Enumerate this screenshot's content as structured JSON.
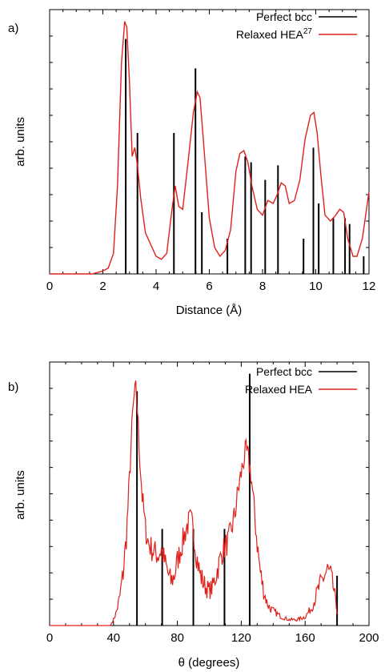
{
  "chart_data": [
    {
      "panel": "a)",
      "type": "line",
      "xlabel": "Distance (Å)",
      "ylabel": "arb. units",
      "xlim": [
        0,
        12
      ],
      "ylim": [
        0,
        1
      ],
      "xticks": [
        "0",
        "2",
        "4",
        "6",
        "8",
        "10",
        "12"
      ],
      "legend_position": "top-right",
      "series": [
        {
          "name": "Perfect bcc",
          "label_base": "Perfect bcc",
          "label_sup": "",
          "style": "impulses",
          "color": "#000000",
          "x": [
            2.86,
            3.3,
            4.67,
            5.48,
            5.72,
            6.68,
            7.35,
            7.57,
            8.1,
            8.58,
            9.54,
            9.91,
            10.11,
            10.66,
            11.1,
            11.27,
            11.8
          ],
          "y": [
            0.8,
            0.48,
            0.48,
            0.7,
            0.21,
            0.12,
            0.4,
            0.38,
            0.32,
            0.37,
            0.12,
            0.43,
            0.24,
            0.19,
            0.19,
            0.17,
            0.06
          ]
        },
        {
          "name": "Relaxed HEA27",
          "label_base": "Relaxed HEA",
          "label_sup": "27",
          "style": "line",
          "color": "#e0201b",
          "x": [
            0,
            1.6,
            2.0,
            2.2,
            2.4,
            2.55,
            2.7,
            2.82,
            2.9,
            3.0,
            3.1,
            3.2,
            3.3,
            3.42,
            3.6,
            3.8,
            4.0,
            4.2,
            4.4,
            4.6,
            4.72,
            4.85,
            5.0,
            5.2,
            5.4,
            5.55,
            5.65,
            5.8,
            6.0,
            6.2,
            6.4,
            6.6,
            6.8,
            7.0,
            7.15,
            7.3,
            7.45,
            7.6,
            7.8,
            8.0,
            8.2,
            8.4,
            8.55,
            8.7,
            8.85,
            9.0,
            9.2,
            9.4,
            9.6,
            9.8,
            9.93,
            10.05,
            10.2,
            10.35,
            10.55,
            10.75,
            10.9,
            11.05,
            11.2,
            11.4,
            11.55,
            11.75,
            12.0
          ],
          "y": [
            0.0,
            0.0,
            0.01,
            0.02,
            0.07,
            0.3,
            0.72,
            0.86,
            0.84,
            0.65,
            0.4,
            0.43,
            0.37,
            0.26,
            0.14,
            0.1,
            0.06,
            0.05,
            0.07,
            0.22,
            0.3,
            0.23,
            0.22,
            0.38,
            0.55,
            0.62,
            0.6,
            0.43,
            0.19,
            0.09,
            0.06,
            0.08,
            0.15,
            0.35,
            0.41,
            0.42,
            0.38,
            0.3,
            0.22,
            0.2,
            0.25,
            0.24,
            0.27,
            0.31,
            0.3,
            0.24,
            0.25,
            0.32,
            0.46,
            0.54,
            0.55,
            0.48,
            0.33,
            0.2,
            0.18,
            0.2,
            0.22,
            0.21,
            0.12,
            0.06,
            0.06,
            0.12,
            0.28
          ]
        }
      ]
    },
    {
      "panel": "b)",
      "type": "line",
      "xlabel": "θ (degrees)",
      "ylabel": "arb. units",
      "xlim": [
        0,
        200
      ],
      "ylim": [
        0,
        1
      ],
      "xticks": [
        "0",
        "40",
        "80",
        "120",
        "160",
        "200"
      ],
      "legend_position": "top-right",
      "series": [
        {
          "name": "Perfect bcc",
          "label_base": "Perfect bcc",
          "label_sup": "",
          "style": "impulses",
          "color": "#000000",
          "x": [
            54.7,
            70.5,
            90.0,
            109.5,
            125.3,
            180.0
          ],
          "y": [
            0.8,
            0.33,
            0.33,
            0.33,
            0.86,
            0.17
          ]
        },
        {
          "name": "Relaxed HEA",
          "label_base": "Relaxed HEA",
          "label_sup": "",
          "style": "noisy-line",
          "color": "#e0201b",
          "x": [
            0,
            38,
            40,
            42,
            44,
            46,
            48,
            50,
            52,
            53,
            54,
            55,
            56,
            58,
            60,
            62,
            64,
            66,
            68,
            70,
            72,
            74,
            76,
            78,
            80,
            82,
            84,
            86,
            88,
            89,
            90,
            91,
            92,
            94,
            96,
            98,
            100,
            102,
            104,
            106,
            108,
            110,
            112,
            114,
            116,
            118,
            120,
            122,
            123,
            124,
            126,
            128,
            130,
            132,
            134,
            136,
            138,
            140,
            145,
            150,
            155,
            160,
            164,
            168,
            172,
            174,
            176,
            178,
            180
          ],
          "y": [
            0.0,
            0.0,
            0.02,
            0.05,
            0.1,
            0.18,
            0.3,
            0.5,
            0.72,
            0.78,
            0.8,
            0.74,
            0.62,
            0.44,
            0.33,
            0.28,
            0.26,
            0.25,
            0.24,
            0.26,
            0.22,
            0.18,
            0.15,
            0.17,
            0.22,
            0.26,
            0.3,
            0.34,
            0.36,
            0.35,
            0.33,
            0.28,
            0.24,
            0.18,
            0.15,
            0.13,
            0.12,
            0.13,
            0.17,
            0.21,
            0.25,
            0.27,
            0.29,
            0.33,
            0.38,
            0.46,
            0.52,
            0.58,
            0.59,
            0.58,
            0.52,
            0.4,
            0.28,
            0.18,
            0.12,
            0.08,
            0.06,
            0.05,
            0.03,
            0.02,
            0.02,
            0.03,
            0.06,
            0.12,
            0.17,
            0.19,
            0.17,
            0.12,
            0.05
          ]
        }
      ]
    }
  ]
}
